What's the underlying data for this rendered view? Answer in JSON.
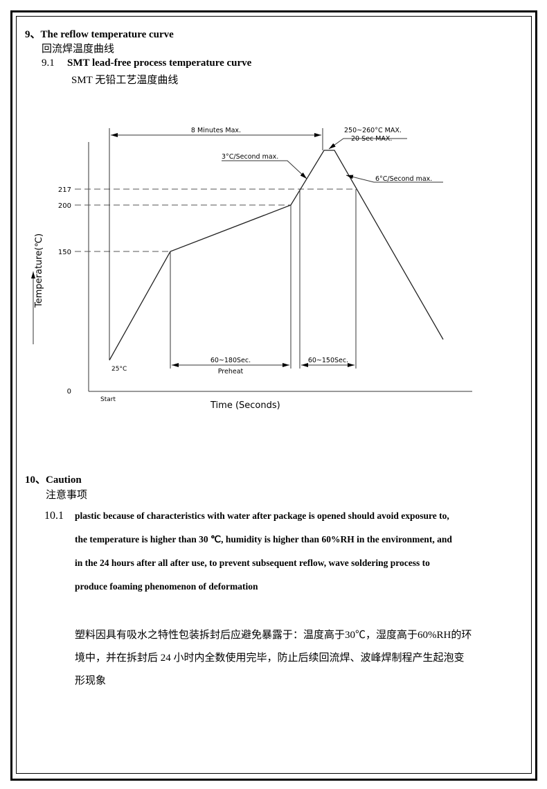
{
  "section9": {
    "title": "9、The reflow temperature curve",
    "title_cn": "回流焊温度曲线",
    "sub_number": "9.1",
    "sub_title": "SMT lead-free process temperature curve",
    "sub_title_cn": "SMT 无铅工艺温度曲线"
  },
  "diagram": {
    "y_axis_label": "Temperature(℃)",
    "x_axis_label": "Time  (Seconds)",
    "y_ticks": [
      "217",
      "200",
      "150",
      "0"
    ],
    "start_label": "Start",
    "start_temp": "25°C",
    "total_time": "8 Minutes Max.",
    "peak_line1": "250~260°C MAX.",
    "peak_line2": "20 Sec MAX.",
    "ramp_up": "3°C/Second max.",
    "ramp_down": "6°C/Second max.",
    "preheat_time": "60~180Sec.",
    "preheat_label": "Preheat",
    "reflow_time": "60~150Sec."
  },
  "section10": {
    "title": "10、Caution",
    "title_cn": "注意事项",
    "item_number": "10.1",
    "lines": [
      "plastic because of characteristics with water after package is opened should avoid exposure to,",
      "the temperature is higher than 30 ℃, humidity is higher than 60%RH in the environment, and",
      "in the 24 hours after all after use, to prevent subsequent reflow, wave soldering process to",
      "produce foaming phenomenon of deformation"
    ],
    "cn_lines": [
      "塑料因具有吸水之特性包装拆封后应避免暴露于：温度高于30℃，湿度高于60%RH的环",
      "境中，并在拆封后 24 小时内全数使用完毕，防止后续回流焊、波峰焊制程产生起泡变",
      "形现象"
    ]
  }
}
